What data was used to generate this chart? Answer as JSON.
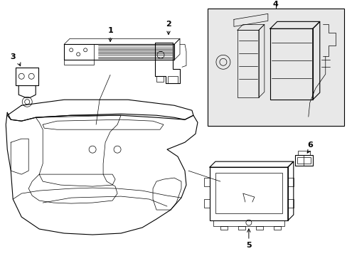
{
  "bg_color": "#ffffff",
  "line_color": "#000000",
  "box4_bg": "#e8e8e8",
  "fig_width": 4.89,
  "fig_height": 3.6,
  "dpi": 100
}
